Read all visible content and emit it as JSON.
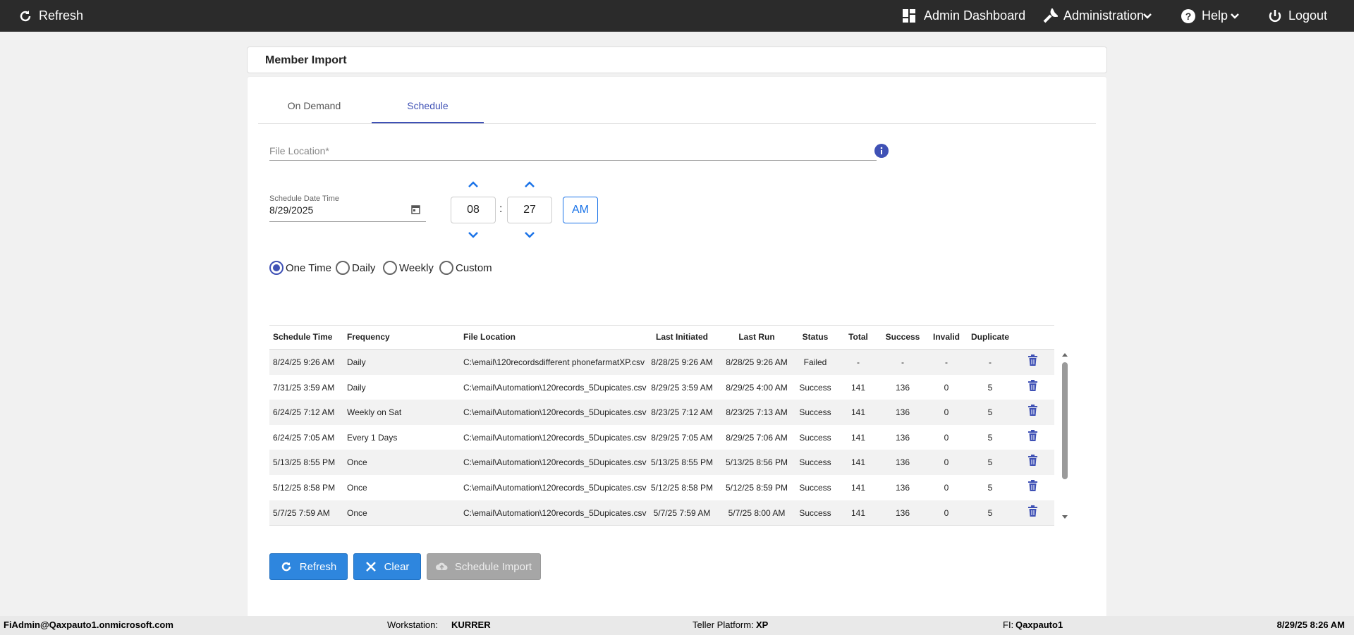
{
  "nav": {
    "refresh": "Refresh",
    "items": [
      "Admin Dashboard",
      "Administration",
      "Help",
      "Logout"
    ]
  },
  "page_title": "Member Import",
  "tabs": [
    "On Demand",
    "Schedule"
  ],
  "active_tab": 1,
  "form": {
    "file_location_label": "File Location*",
    "schedule_label": "Schedule Date Time",
    "date": "8/29/2025",
    "hour": "08",
    "separator": ":",
    "minute": "27",
    "ampm": "AM"
  },
  "frequencies": [
    "One Time",
    "Daily",
    "Weekly",
    "Custom"
  ],
  "selected_frequency": 0,
  "table": {
    "headers": [
      "Schedule Time",
      "Frequency",
      "File Location",
      "Last Initiated",
      "Last Run",
      "Status",
      "Total",
      "Success",
      "Invalid",
      "Duplicate"
    ],
    "rows": [
      [
        "8/24/25 9:26 AM",
        "Daily",
        "C:\\email\\120recordsdifferent phonefarmatXP.csv",
        "8/28/25 9:26 AM",
        "8/28/25 9:26 AM",
        "Failed",
        "-",
        "-",
        "-",
        "-"
      ],
      [
        "7/31/25 3:59 AM",
        "Daily",
        "C:\\email\\Automation\\120records_5Dupicates.csv",
        "8/29/25 3:59 AM",
        "8/29/25 4:00 AM",
        "Success",
        "141",
        "136",
        "0",
        "5"
      ],
      [
        "6/24/25 7:12 AM",
        "Weekly on Sat",
        "C:\\email\\Automation\\120records_5Dupicates.csv",
        "8/23/25 7:12 AM",
        "8/23/25 7:13 AM",
        "Success",
        "141",
        "136",
        "0",
        "5"
      ],
      [
        "6/24/25 7:05 AM",
        "Every 1 Days",
        "C:\\email\\Automation\\120records_5Dupicates.csv",
        "8/29/25 7:05 AM",
        "8/29/25 7:06 AM",
        "Success",
        "141",
        "136",
        "0",
        "5"
      ],
      [
        "5/13/25 8:55 PM",
        "Once",
        "C:\\email\\Automation\\120records_5Dupicates.csv",
        "5/13/25 8:55 PM",
        "5/13/25 8:56 PM",
        "Success",
        "141",
        "136",
        "0",
        "5"
      ],
      [
        "5/12/25 8:58 PM",
        "Once",
        "C:\\email\\Automation\\120records_5Dupicates.csv",
        "5/12/25 8:58 PM",
        "5/12/25 8:59 PM",
        "Success",
        "141",
        "136",
        "0",
        "5"
      ],
      [
        "5/7/25 7:59 AM",
        "Once",
        "C:\\email\\Automation\\120records_5Dupicates.csv",
        "5/7/25 7:59 AM",
        "5/7/25 8:00 AM",
        "Success",
        "141",
        "136",
        "0",
        "5"
      ]
    ]
  },
  "buttons": [
    "Refresh",
    "Clear",
    "Schedule Import"
  ],
  "footer": {
    "user": "FiAdmin@Qaxpauto1.onmicrosoft.com",
    "workstation_label": "Workstation:",
    "workstation": "KURRER",
    "platform_label": "Teller Platform:",
    "platform": "XP",
    "fi_label": "FI:",
    "fi": "Qaxpauto1",
    "datetime": "8/29/25 8:26 AM"
  }
}
